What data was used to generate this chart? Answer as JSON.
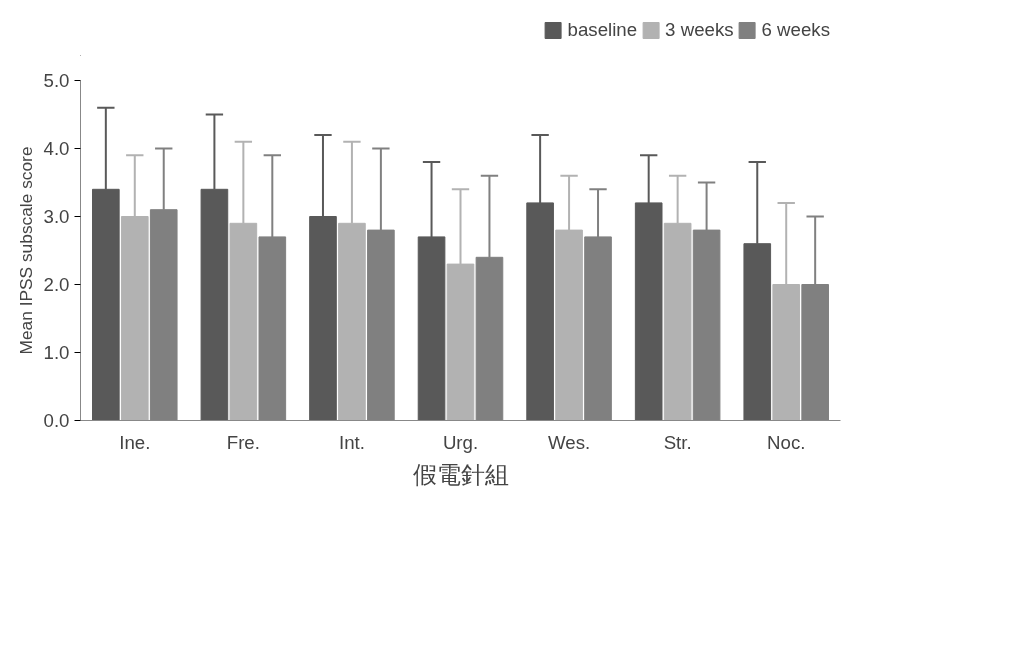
{
  "chart_data": {
    "type": "bar",
    "xlabel": "假電針組",
    "ylabel": "Mean IPSS subscale score",
    "categories": [
      "Ine.",
      "Fre.",
      "Int.",
      "Urg.",
      "Wes.",
      "Str.",
      "Noc."
    ],
    "series": [
      {
        "name": "baseline",
        "color": "#595959",
        "values": [
          3.4,
          3.4,
          3.0,
          2.7,
          3.2,
          3.2,
          2.6
        ],
        "errors": [
          [
            3.4,
            4.6
          ],
          [
            3.4,
            4.5
          ],
          [
            3.0,
            4.2
          ],
          [
            2.7,
            3.8
          ],
          [
            3.2,
            4.2
          ],
          [
            3.2,
            3.9
          ],
          [
            2.6,
            3.8
          ]
        ]
      },
      {
        "name": "3 weeks",
        "color": "#b2b2b2",
        "values": [
          3.0,
          2.9,
          2.9,
          2.3,
          2.8,
          2.9,
          2.0
        ],
        "errors": [
          [
            3.0,
            3.9
          ],
          [
            2.9,
            4.1
          ],
          [
            2.9,
            4.1
          ],
          [
            2.3,
            3.4
          ],
          [
            2.8,
            3.6
          ],
          [
            2.9,
            3.6
          ],
          [
            2.0,
            3.2
          ]
        ]
      },
      {
        "name": "6 weeks",
        "color": "#808080",
        "values": [
          3.1,
          2.7,
          2.8,
          2.4,
          2.7,
          2.8,
          2.0
        ],
        "errors": [
          [
            3.1,
            4.0
          ],
          [
            2.7,
            3.9
          ],
          [
            2.8,
            4.0
          ],
          [
            2.4,
            3.6
          ],
          [
            2.7,
            3.4
          ],
          [
            2.8,
            3.5
          ],
          [
            2.0,
            3.0
          ]
        ]
      }
    ],
    "ylim": [
      0,
      5
    ],
    "yticks": [
      {
        "value": 0,
        "label": "0.0"
      },
      {
        "value": 1,
        "label": "1.0"
      },
      {
        "value": 2,
        "label": "2.0"
      },
      {
        "value": 3,
        "label": "3.0"
      },
      {
        "value": 4,
        "label": "4.0"
      },
      {
        "value": 5,
        "label": "5.0"
      }
    ],
    "grid": false,
    "legend": "top right"
  }
}
